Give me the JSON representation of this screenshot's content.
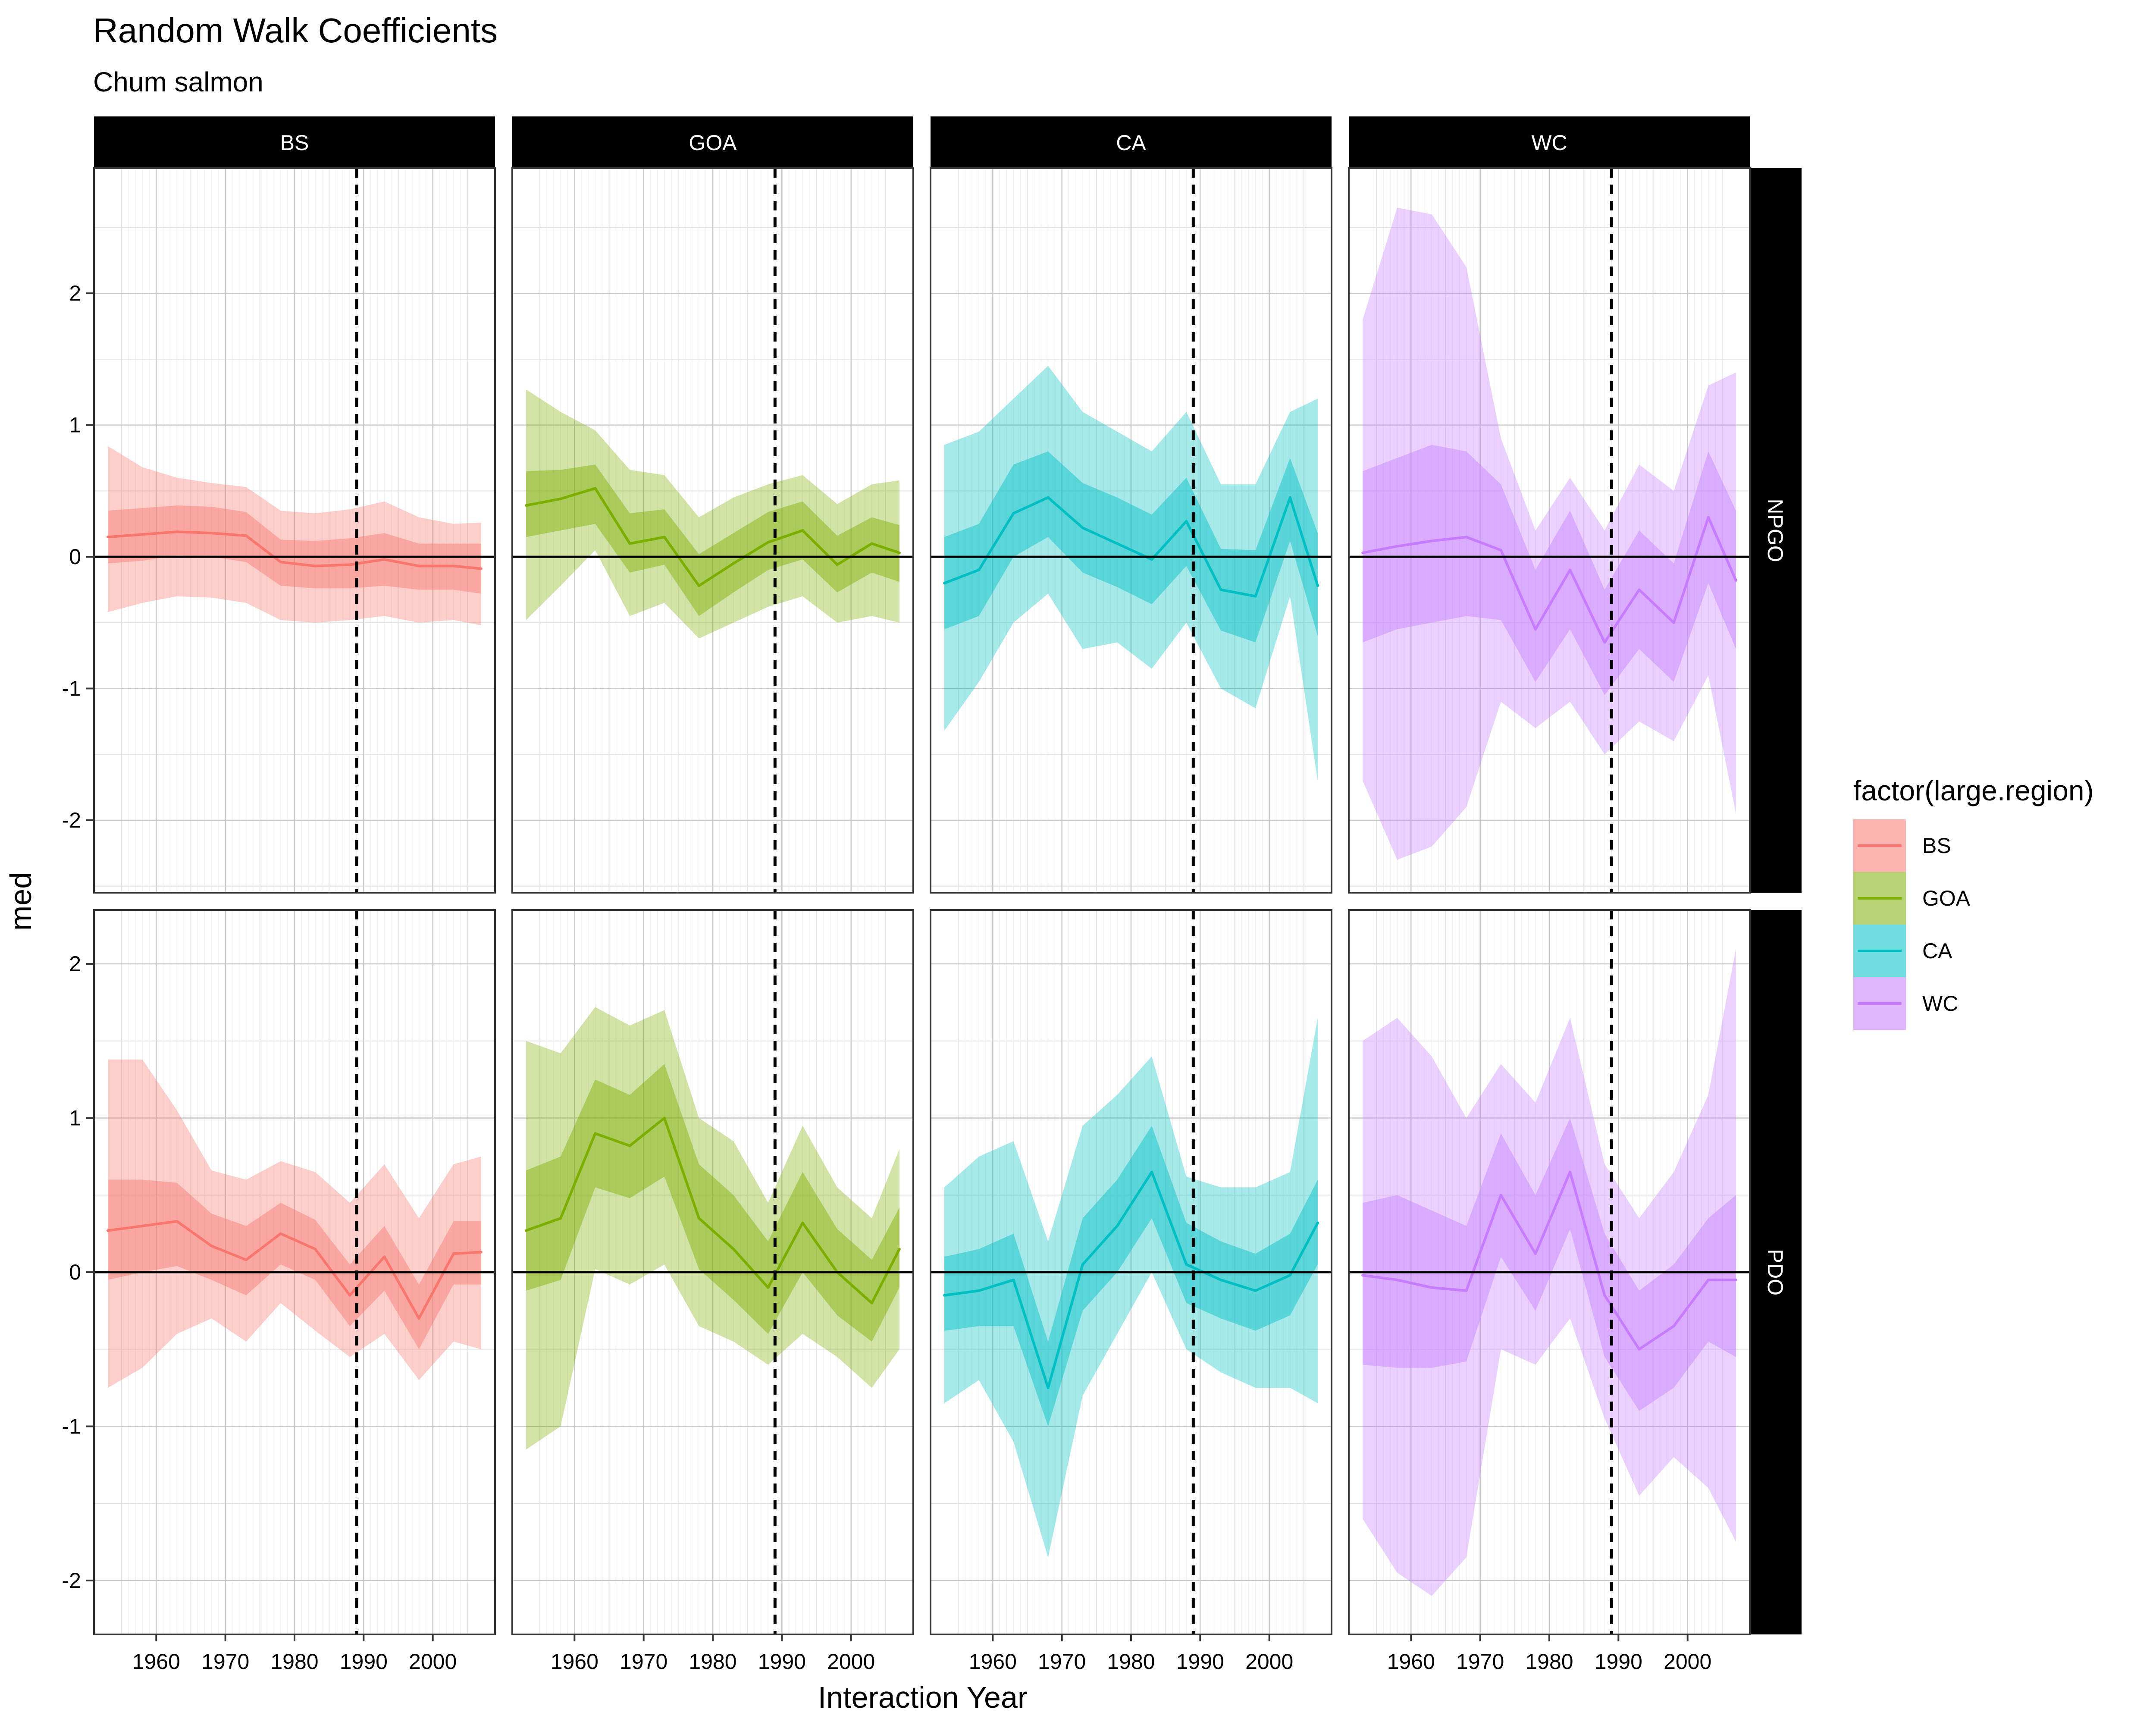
{
  "chart_data": {
    "type": "line",
    "title": "Random Walk Coefficients",
    "subtitle": "Chum salmon",
    "xlabel": "Interaction Year",
    "ylabel": "med",
    "x_tick_labels": [
      "1960",
      "1970",
      "1980",
      "1990",
      "2000"
    ],
    "y_tick_labels": [
      "-2",
      "-1",
      "0",
      "1",
      "2"
    ],
    "xlim": [
      1951,
      2009
    ],
    "panel_columns": [
      "BS",
      "GOA",
      "CA",
      "WC"
    ],
    "panel_rows": [
      "NPGO",
      "PDO"
    ],
    "ylim": {
      "NPGO": [
        -2.55,
        2.95
      ],
      "PDO": [
        -2.35,
        2.35
      ]
    },
    "reference_lines": {
      "horizontal": 0,
      "vertical_dashed": 1989
    },
    "legend": {
      "title": "factor(large.region)",
      "position": "right",
      "entries": [
        "BS",
        "GOA",
        "CA",
        "WC"
      ]
    },
    "colors": {
      "BS": "#F8766D",
      "GOA": "#7CAE00",
      "CA": "#00BFC4",
      "WC": "#C77CFF"
    },
    "grid": true,
    "x": [
      1953,
      1958,
      1963,
      1968,
      1973,
      1978,
      1983,
      1988,
      1993,
      1998,
      2003,
      2007
    ],
    "series": [
      {
        "name": "BS",
        "index": "NPGO",
        "median": [
          0.15,
          0.17,
          0.19,
          0.18,
          0.16,
          -0.04,
          -0.07,
          -0.06,
          -0.02,
          -0.07,
          -0.07,
          -0.09
        ],
        "inner": [
          [
            -0.05,
            0.35
          ],
          [
            -0.03,
            0.37
          ],
          [
            0.01,
            0.39
          ],
          [
            0.0,
            0.38
          ],
          [
            -0.04,
            0.34
          ],
          [
            -0.22,
            0.13
          ],
          [
            -0.24,
            0.12
          ],
          [
            -0.24,
            0.14
          ],
          [
            -0.22,
            0.18
          ],
          [
            -0.25,
            0.1
          ],
          [
            -0.25,
            0.1
          ],
          [
            -0.28,
            0.1
          ]
        ],
        "outer": [
          [
            -0.42,
            0.84
          ],
          [
            -0.35,
            0.68
          ],
          [
            -0.3,
            0.6
          ],
          [
            -0.31,
            0.56
          ],
          [
            -0.35,
            0.53
          ],
          [
            -0.48,
            0.35
          ],
          [
            -0.5,
            0.33
          ],
          [
            -0.48,
            0.36
          ],
          [
            -0.45,
            0.42
          ],
          [
            -0.5,
            0.3
          ],
          [
            -0.48,
            0.25
          ],
          [
            -0.52,
            0.26
          ]
        ]
      },
      {
        "name": "GOA",
        "index": "NPGO",
        "median": [
          0.39,
          0.44,
          0.52,
          0.1,
          0.15,
          -0.22,
          -0.05,
          0.11,
          0.2,
          -0.06,
          0.1,
          0.03
        ],
        "inner": [
          [
            0.15,
            0.65
          ],
          [
            0.2,
            0.66
          ],
          [
            0.25,
            0.7
          ],
          [
            -0.12,
            0.33
          ],
          [
            -0.06,
            0.36
          ],
          [
            -0.45,
            0.02
          ],
          [
            -0.27,
            0.18
          ],
          [
            -0.1,
            0.34
          ],
          [
            -0.02,
            0.42
          ],
          [
            -0.27,
            0.16
          ],
          [
            -0.12,
            0.3
          ],
          [
            -0.19,
            0.24
          ]
        ],
        "outer": [
          [
            -0.48,
            1.27
          ],
          [
            -0.22,
            1.1
          ],
          [
            0.05,
            0.96
          ],
          [
            -0.45,
            0.66
          ],
          [
            -0.35,
            0.62
          ],
          [
            -0.62,
            0.3
          ],
          [
            -0.5,
            0.45
          ],
          [
            -0.38,
            0.55
          ],
          [
            -0.3,
            0.62
          ],
          [
            -0.5,
            0.4
          ],
          [
            -0.45,
            0.55
          ],
          [
            -0.5,
            0.58
          ]
        ]
      },
      {
        "name": "CA",
        "index": "NPGO",
        "median": [
          -0.2,
          -0.1,
          0.33,
          0.45,
          0.22,
          0.1,
          -0.02,
          0.27,
          -0.25,
          -0.3,
          0.45,
          -0.22
        ],
        "inner": [
          [
            -0.55,
            0.15
          ],
          [
            -0.45,
            0.25
          ],
          [
            0.0,
            0.7
          ],
          [
            0.15,
            0.8
          ],
          [
            -0.12,
            0.56
          ],
          [
            -0.23,
            0.45
          ],
          [
            -0.36,
            0.32
          ],
          [
            -0.07,
            0.6
          ],
          [
            -0.56,
            0.06
          ],
          [
            -0.65,
            0.05
          ],
          [
            0.12,
            0.75
          ],
          [
            -0.6,
            0.18
          ]
        ],
        "outer": [
          [
            -1.32,
            0.85
          ],
          [
            -0.95,
            0.95
          ],
          [
            -0.5,
            1.2
          ],
          [
            -0.28,
            1.45
          ],
          [
            -0.7,
            1.1
          ],
          [
            -0.65,
            0.95
          ],
          [
            -0.85,
            0.8
          ],
          [
            -0.5,
            1.1
          ],
          [
            -1.0,
            0.55
          ],
          [
            -1.15,
            0.55
          ],
          [
            -0.3,
            1.1
          ],
          [
            -1.7,
            1.2
          ]
        ]
      },
      {
        "name": "WC",
        "index": "NPGO",
        "median": [
          0.03,
          0.08,
          0.12,
          0.15,
          0.05,
          -0.55,
          -0.1,
          -0.65,
          -0.25,
          -0.5,
          0.3,
          -0.18
        ],
        "inner": [
          [
            -0.65,
            0.65
          ],
          [
            -0.55,
            0.75
          ],
          [
            -0.5,
            0.85
          ],
          [
            -0.45,
            0.8
          ],
          [
            -0.48,
            0.55
          ],
          [
            -0.95,
            -0.1
          ],
          [
            -0.55,
            0.35
          ],
          [
            -1.05,
            -0.25
          ],
          [
            -0.7,
            0.2
          ],
          [
            -0.95,
            -0.05
          ],
          [
            -0.2,
            0.8
          ],
          [
            -0.7,
            0.35
          ]
        ],
        "outer": [
          [
            -1.7,
            1.8
          ],
          [
            -2.3,
            2.65
          ],
          [
            -2.2,
            2.6
          ],
          [
            -1.9,
            2.2
          ],
          [
            -1.1,
            0.9
          ],
          [
            -1.3,
            0.2
          ],
          [
            -1.1,
            0.6
          ],
          [
            -1.5,
            0.2
          ],
          [
            -1.25,
            0.7
          ],
          [
            -1.4,
            0.5
          ],
          [
            -0.9,
            1.3
          ],
          [
            -1.95,
            1.4
          ]
        ]
      },
      {
        "name": "BS",
        "index": "PDO",
        "median": [
          0.27,
          0.3,
          0.33,
          0.17,
          0.08,
          0.25,
          0.15,
          -0.15,
          0.1,
          -0.3,
          0.12,
          0.13
        ],
        "inner": [
          [
            -0.05,
            0.6
          ],
          [
            0.0,
            0.6
          ],
          [
            0.04,
            0.58
          ],
          [
            -0.05,
            0.38
          ],
          [
            -0.15,
            0.3
          ],
          [
            0.05,
            0.45
          ],
          [
            -0.05,
            0.34
          ],
          [
            -0.35,
            0.05
          ],
          [
            -0.12,
            0.3
          ],
          [
            -0.5,
            -0.08
          ],
          [
            -0.08,
            0.33
          ],
          [
            -0.08,
            0.33
          ]
        ],
        "outer": [
          [
            -0.75,
            1.38
          ],
          [
            -0.62,
            1.38
          ],
          [
            -0.4,
            1.05
          ],
          [
            -0.3,
            0.66
          ],
          [
            -0.45,
            0.6
          ],
          [
            -0.2,
            0.72
          ],
          [
            -0.38,
            0.65
          ],
          [
            -0.55,
            0.45
          ],
          [
            -0.4,
            0.7
          ],
          [
            -0.7,
            0.35
          ],
          [
            -0.45,
            0.7
          ],
          [
            -0.5,
            0.75
          ]
        ]
      },
      {
        "name": "GOA",
        "index": "PDO",
        "median": [
          0.27,
          0.35,
          0.9,
          0.82,
          1.0,
          0.35,
          0.15,
          -0.1,
          0.32,
          0.0,
          -0.2,
          0.15
        ],
        "inner": [
          [
            -0.12,
            0.66
          ],
          [
            -0.05,
            0.75
          ],
          [
            0.55,
            1.25
          ],
          [
            0.48,
            1.15
          ],
          [
            0.62,
            1.35
          ],
          [
            0.02,
            0.7
          ],
          [
            -0.18,
            0.5
          ],
          [
            -0.4,
            0.2
          ],
          [
            0.0,
            0.65
          ],
          [
            -0.28,
            0.28
          ],
          [
            -0.45,
            0.08
          ],
          [
            -0.1,
            0.42
          ]
        ],
        "outer": [
          [
            -1.15,
            1.5
          ],
          [
            -1.0,
            1.42
          ],
          [
            0.02,
            1.72
          ],
          [
            -0.08,
            1.6
          ],
          [
            0.05,
            1.7
          ],
          [
            -0.35,
            1.0
          ],
          [
            -0.45,
            0.85
          ],
          [
            -0.6,
            0.45
          ],
          [
            -0.4,
            0.95
          ],
          [
            -0.55,
            0.55
          ],
          [
            -0.75,
            0.35
          ],
          [
            -0.5,
            0.8
          ]
        ]
      },
      {
        "name": "CA",
        "index": "PDO",
        "median": [
          -0.15,
          -0.12,
          -0.05,
          -0.75,
          0.05,
          0.3,
          0.65,
          0.05,
          -0.05,
          -0.12,
          -0.02,
          0.32
        ],
        "inner": [
          [
            -0.38,
            0.1
          ],
          [
            -0.35,
            0.15
          ],
          [
            -0.35,
            0.25
          ],
          [
            -1.0,
            -0.45
          ],
          [
            -0.25,
            0.35
          ],
          [
            0.0,
            0.6
          ],
          [
            0.35,
            0.95
          ],
          [
            -0.2,
            0.32
          ],
          [
            -0.3,
            0.2
          ],
          [
            -0.38,
            0.12
          ],
          [
            -0.28,
            0.25
          ],
          [
            0.05,
            0.6
          ]
        ],
        "outer": [
          [
            -0.85,
            0.55
          ],
          [
            -0.7,
            0.75
          ],
          [
            -1.1,
            0.85
          ],
          [
            -1.85,
            0.2
          ],
          [
            -0.8,
            0.95
          ],
          [
            -0.4,
            1.15
          ],
          [
            0.0,
            1.4
          ],
          [
            -0.5,
            0.62
          ],
          [
            -0.65,
            0.55
          ],
          [
            -0.75,
            0.55
          ],
          [
            -0.75,
            0.65
          ],
          [
            -0.85,
            1.65
          ]
        ]
      },
      {
        "name": "WC",
        "index": "PDO",
        "median": [
          -0.02,
          -0.05,
          -0.1,
          -0.12,
          0.5,
          0.12,
          0.65,
          -0.15,
          -0.5,
          -0.35,
          -0.05,
          -0.05
        ],
        "inner": [
          [
            -0.6,
            0.45
          ],
          [
            -0.62,
            0.5
          ],
          [
            -0.62,
            0.4
          ],
          [
            -0.58,
            0.3
          ],
          [
            0.1,
            0.9
          ],
          [
            -0.25,
            0.5
          ],
          [
            0.28,
            1.0
          ],
          [
            -0.55,
            0.25
          ],
          [
            -0.9,
            -0.12
          ],
          [
            -0.75,
            0.05
          ],
          [
            -0.45,
            0.35
          ],
          [
            -0.55,
            0.5
          ]
        ],
        "outer": [
          [
            -1.6,
            1.5
          ],
          [
            -1.95,
            1.65
          ],
          [
            -2.1,
            1.4
          ],
          [
            -1.85,
            1.0
          ],
          [
            -0.5,
            1.35
          ],
          [
            -0.6,
            1.1
          ],
          [
            -0.3,
            1.65
          ],
          [
            -0.95,
            0.7
          ],
          [
            -1.45,
            0.35
          ],
          [
            -1.2,
            0.65
          ],
          [
            -1.4,
            1.15
          ],
          [
            -1.75,
            2.1
          ]
        ]
      }
    ]
  }
}
